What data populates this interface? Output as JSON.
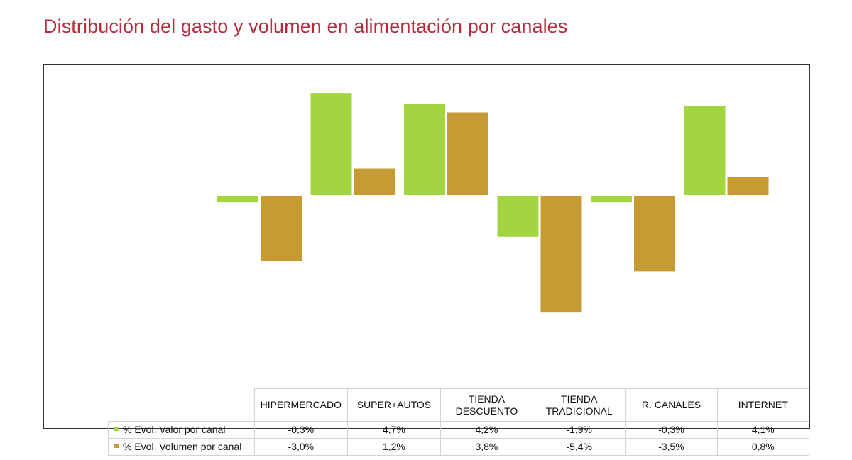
{
  "title": "Distribución del gasto y volumen en alimentación por canales",
  "colors": {
    "title": "#b52b3a",
    "valor": "#a2d53f",
    "volumen": "#c79b33"
  },
  "chart_data": {
    "type": "bar",
    "categories": [
      "HIPERMERCADO",
      "SUPER+AUTOS",
      "TIENDA DESCUENTO",
      "TIENDA TRADICIONAL",
      "R. CANALES",
      "INTERNET"
    ],
    "category_lines": [
      [
        "HIPERMERCADO"
      ],
      [
        "SUPER+AUTOS"
      ],
      [
        "TIENDA",
        "DESCUENTO"
      ],
      [
        "TIENDA",
        "TRADICIONAL"
      ],
      [
        "R. CANALES"
      ],
      [
        "INTERNET"
      ]
    ],
    "series": [
      {
        "name": "% Evol. Valor por canal",
        "values": [
          -0.3,
          4.7,
          4.2,
          -1.9,
          -0.3,
          4.1
        ],
        "labels": [
          "-0,3%",
          "4,7%",
          "4,2%",
          "-1,9%",
          "-0,3%",
          "4,1%"
        ],
        "color": "#a2d53f"
      },
      {
        "name": "% Evol. Volumen por canal",
        "values": [
          -3.0,
          1.2,
          3.8,
          -5.4,
          -3.5,
          0.8
        ],
        "labels": [
          "-3,0%",
          "1,2%",
          "3,8%",
          "-5,4%",
          "-3,5%",
          "0,8%"
        ],
        "color": "#c79b33"
      }
    ],
    "ylim": [
      -5.6,
      5.0
    ],
    "gridlines": false,
    "legend": "data-table"
  }
}
